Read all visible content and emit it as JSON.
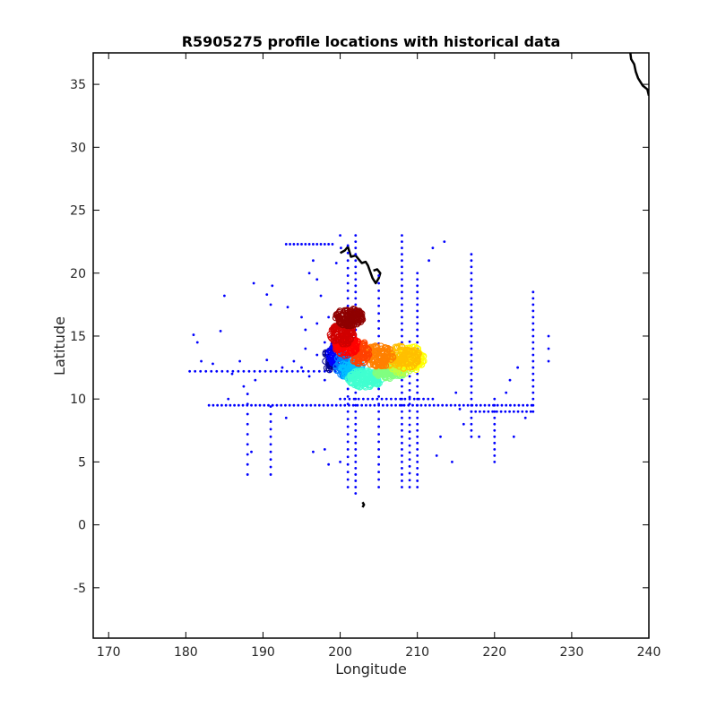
{
  "chart_data": {
    "type": "scatter",
    "title": "R5905275 profile locations with historical data",
    "xlabel": "Longitude",
    "ylabel": "Latitude",
    "xlim": [
      168,
      240
    ],
    "ylim": [
      -9,
      37.5
    ],
    "xticks": [
      170,
      180,
      190,
      200,
      210,
      220,
      230,
      240
    ],
    "yticks": [
      -5,
      0,
      5,
      10,
      15,
      20,
      25,
      30,
      35
    ],
    "grid": false,
    "colors": {
      "historical": "#0000ff",
      "coastline": "#000000",
      "axes": "#000000"
    },
    "series": [
      {
        "kind": "coastline-hawaii",
        "points": [
          [
            200.0,
            21.6
          ],
          [
            200.6,
            21.8
          ],
          [
            201.0,
            22.1
          ],
          [
            201.4,
            21.3
          ],
          [
            202.0,
            21.4
          ],
          [
            202.4,
            21.1
          ],
          [
            202.8,
            20.8
          ],
          [
            203.3,
            20.9
          ],
          [
            203.6,
            20.6
          ],
          [
            203.9,
            20.1
          ],
          [
            204.2,
            19.6
          ],
          [
            204.6,
            19.2
          ],
          [
            205.0,
            19.6
          ],
          [
            205.2,
            20.0
          ],
          [
            204.8,
            20.3
          ],
          [
            204.3,
            20.2
          ]
        ]
      },
      {
        "kind": "coastline-jarvis",
        "points": [
          [
            202.9,
            1.8
          ],
          [
            203.1,
            1.6
          ],
          [
            202.9,
            1.4
          ]
        ]
      },
      {
        "kind": "coastline-northamerica",
        "points": [
          [
            237.6,
            37.5
          ],
          [
            237.7,
            37.0
          ],
          [
            238.1,
            36.6
          ],
          [
            238.3,
            36.0
          ],
          [
            238.6,
            35.5
          ],
          [
            238.9,
            35.2
          ],
          [
            239.2,
            34.9
          ],
          [
            239.8,
            34.6
          ],
          [
            240.0,
            34.1
          ]
        ]
      },
      {
        "kind": "historical-grid",
        "lines": [
          {
            "x": [
              183.0,
              225.0
            ],
            "y": 9.5,
            "step": 0.55
          },
          {
            "x": [
              217.0,
              225.0
            ],
            "y": 9.0,
            "step": 0.55
          },
          {
            "y": [
              2.5,
              23.0
            ],
            "x": 202.0,
            "step": 0.5
          },
          {
            "y": [
              3.0,
              22.5
            ],
            "x": 201.0,
            "step": 0.6
          },
          {
            "y": [
              3.0,
              20.0
            ],
            "x": 205.0,
            "step": 0.6
          },
          {
            "y": [
              3.0,
              23.0
            ],
            "x": 208.0,
            "step": 0.5
          },
          {
            "y": [
              3.0,
              20.0
            ],
            "x": 210.0,
            "step": 0.5
          },
          {
            "y": [
              3.0,
              15.0
            ],
            "x": 209.0,
            "step": 0.55
          },
          {
            "y": [
              7.0,
              21.5
            ],
            "x": 217.0,
            "step": 0.5
          },
          {
            "y": [
              9.0,
              18.5
            ],
            "x": 225.0,
            "step": 0.5
          },
          {
            "y": [
              5.0,
              10.0
            ],
            "x": 220.0,
            "step": 0.5
          },
          {
            "y": [
              4.0,
              9.5
            ],
            "x": 191.0,
            "step": 0.6
          },
          {
            "y": [
              4.0,
              10.5
            ],
            "x": 188.0,
            "step": 0.8
          },
          {
            "x": [
              180.5,
              200.0
            ],
            "y": 12.2,
            "step": 0.7
          },
          {
            "x": [
              200.0,
              212.0
            ],
            "y": 10.0,
            "step": 0.6
          },
          {
            "x": [
              193.0,
              199.0
            ],
            "y": 22.3,
            "step": 0.5
          }
        ],
        "extra_points": [
          [
            181,
            15.1
          ],
          [
            181.5,
            14.5
          ],
          [
            182,
            13
          ],
          [
            185,
            18.2
          ],
          [
            184.5,
            15.4
          ],
          [
            188.8,
            19.2
          ],
          [
            191.2,
            19.0
          ],
          [
            190.5,
            18.3
          ],
          [
            191.0,
            17.5
          ],
          [
            193.2,
            17.3
          ],
          [
            195.0,
            16.5
          ],
          [
            195.5,
            15.5
          ],
          [
            196.5,
            21.0
          ],
          [
            196.0,
            20.0
          ],
          [
            197.0,
            19.5
          ],
          [
            197.5,
            18.2
          ],
          [
            198.0,
            14.5
          ],
          [
            198.5,
            16.5
          ],
          [
            197.0,
            16.0
          ],
          [
            198.0,
            11.5
          ],
          [
            199.5,
            20.8
          ],
          [
            200.1,
            22.0
          ],
          [
            200.0,
            23.0
          ],
          [
            211.5,
            21.0
          ],
          [
            212.0,
            22.0
          ],
          [
            213.5,
            22.5
          ],
          [
            215.0,
            10.5
          ],
          [
            216.0,
            8.0
          ],
          [
            214.5,
            5.0
          ],
          [
            218.0,
            7.0
          ],
          [
            221.5,
            10.5
          ],
          [
            222.0,
            11.5
          ],
          [
            223.0,
            12.5
          ],
          [
            224.0,
            8.5
          ],
          [
            227.0,
            15.0
          ],
          [
            227.0,
            14.0
          ],
          [
            227.0,
            13.0
          ],
          [
            222.5,
            7.0
          ],
          [
            215.5,
            9.2
          ],
          [
            213.0,
            7.0
          ],
          [
            212.5,
            5.5
          ],
          [
            186.0,
            12.0
          ],
          [
            187.5,
            11.0
          ],
          [
            189.0,
            11.5
          ],
          [
            185.5,
            10.0
          ],
          [
            183.5,
            12.8
          ],
          [
            187.0,
            13.0
          ],
          [
            190.5,
            13.1
          ],
          [
            192.5,
            12.5
          ],
          [
            194.0,
            13.0
          ],
          [
            195.0,
            12.5
          ],
          [
            196.0,
            11.8
          ],
          [
            188.5,
            5.8
          ],
          [
            196.5,
            5.8
          ],
          [
            198.0,
            6.0
          ],
          [
            198.5,
            4.8
          ],
          [
            200.0,
            5.0
          ],
          [
            195.5,
            14.0
          ],
          [
            197.0,
            13.5
          ],
          [
            193.0,
            8.5
          ]
        ]
      },
      {
        "kind": "profile-track",
        "clusters": [
          {
            "color": "#00008f",
            "cx": 198.8,
            "cy": 13.2,
            "rx": 0.8,
            "ry": 1.0,
            "n": 30
          },
          {
            "color": "#0000ff",
            "cx": 199.5,
            "cy": 13.6,
            "rx": 1.0,
            "ry": 0.9,
            "n": 40
          },
          {
            "color": "#0080ff",
            "cx": 200.6,
            "cy": 12.7,
            "rx": 1.2,
            "ry": 0.9,
            "n": 60
          },
          {
            "color": "#00bfff",
            "cx": 201.5,
            "cy": 12.4,
            "rx": 1.4,
            "ry": 0.8,
            "n": 60
          },
          {
            "color": "#40ffd0",
            "cx": 203.2,
            "cy": 11.6,
            "rx": 2.2,
            "ry": 0.7,
            "n": 120
          },
          {
            "color": "#80ff80",
            "cx": 206.5,
            "cy": 12.2,
            "rx": 2.0,
            "ry": 0.6,
            "n": 90
          },
          {
            "color": "#c0ff40",
            "cx": 208.2,
            "cy": 12.8,
            "rx": 1.8,
            "ry": 0.8,
            "n": 80
          },
          {
            "color": "#ffff00",
            "cx": 209.3,
            "cy": 13.2,
            "rx": 1.6,
            "ry": 1.0,
            "n": 90
          },
          {
            "color": "#ffbf00",
            "cx": 208.0,
            "cy": 13.3,
            "rx": 2.4,
            "ry": 0.9,
            "n": 110
          },
          {
            "color": "#ff8000",
            "cx": 205.0,
            "cy": 13.4,
            "rx": 2.0,
            "ry": 0.9,
            "n": 100
          },
          {
            "color": "#ff4000",
            "cx": 202.5,
            "cy": 13.7,
            "rx": 1.3,
            "ry": 0.9,
            "n": 80
          },
          {
            "color": "#ff0000",
            "cx": 200.8,
            "cy": 14.3,
            "rx": 1.5,
            "ry": 0.9,
            "n": 100
          },
          {
            "color": "#d00000",
            "cx": 200.3,
            "cy": 15.2,
            "rx": 1.6,
            "ry": 0.9,
            "n": 90
          },
          {
            "color": "#8f0000",
            "cx": 201.2,
            "cy": 16.5,
            "rx": 1.8,
            "ry": 0.7,
            "n": 110
          }
        ]
      }
    ]
  }
}
